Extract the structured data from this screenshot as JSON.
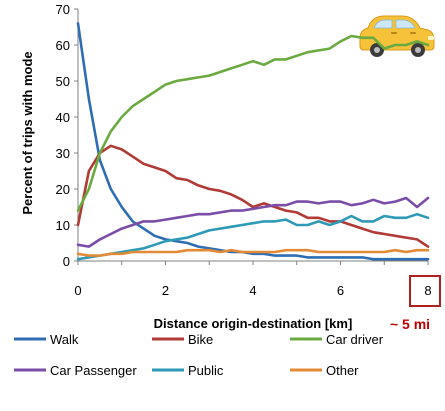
{
  "chart_data": {
    "type": "line",
    "xlabel": "Distance origin-destination [km]",
    "ylabel": "Percent of trips with mode",
    "xlim": [
      0,
      8
    ],
    "ylim": [
      0,
      70
    ],
    "x_ticks": [
      "0",
      "2",
      "4",
      "6",
      "8"
    ],
    "y_ticks": [
      "0",
      "10",
      "20",
      "30",
      "40",
      "50",
      "60",
      "70"
    ],
    "grid": false,
    "legend_position": "bottom",
    "highlighted_tick": "8",
    "annotation": "~ 5 mi",
    "x": [
      0,
      0.25,
      0.5,
      0.75,
      1,
      1.25,
      1.5,
      1.75,
      2,
      2.25,
      2.5,
      2.75,
      3,
      3.25,
      3.5,
      3.75,
      4,
      4.25,
      4.5,
      4.75,
      5,
      5.25,
      5.5,
      5.75,
      6,
      6.25,
      6.5,
      6.75,
      7,
      7.25,
      7.5,
      7.75,
      8
    ],
    "series": [
      {
        "name": "Walk",
        "color": "#2e6db4",
        "values": [
          66,
          45,
          28,
          20,
          15,
          11,
          9,
          7,
          6,
          5.5,
          5,
          4,
          3.5,
          3,
          2.5,
          2.5,
          2,
          2,
          1.5,
          1.5,
          1.5,
          1,
          1,
          1,
          1,
          1,
          1,
          0.5,
          0.5,
          0.5,
          0.5,
          0.5,
          0.5
        ]
      },
      {
        "name": "Bike",
        "color": "#b03a35",
        "values": [
          10,
          25,
          30,
          32,
          31,
          29,
          27,
          26,
          25,
          23,
          22.5,
          21,
          20,
          19.5,
          18.5,
          17,
          15,
          16,
          15,
          14,
          13.5,
          12,
          12,
          11,
          11,
          10,
          9,
          8,
          7.5,
          7,
          6.5,
          6,
          4
        ]
      },
      {
        "name": "Car driver",
        "color": "#6aaa40",
        "values": [
          14,
          20,
          30,
          36,
          40,
          43,
          45,
          47,
          49,
          50,
          50.5,
          51,
          51.5,
          52.5,
          53.5,
          54.5,
          55.5,
          54.5,
          56,
          56,
          57,
          58,
          58.5,
          59,
          61,
          62.5,
          62,
          62,
          59,
          60,
          60,
          61,
          60
        ]
      },
      {
        "name": "Car Passenger",
        "color": "#7a4ea8",
        "values": [
          4.5,
          4,
          6,
          7.5,
          9,
          10,
          11,
          11,
          11.5,
          12,
          12.5,
          13,
          13,
          13.5,
          14,
          14,
          14.5,
          15,
          15.5,
          15.5,
          16.5,
          16.5,
          16,
          16.5,
          16.5,
          15.5,
          16,
          17,
          16,
          16.5,
          17.5,
          15,
          17.5
        ]
      },
      {
        "name": "Public",
        "color": "#2e9ab5",
        "values": [
          0.5,
          1,
          1.5,
          2,
          2.5,
          3,
          3.5,
          4.5,
          5.5,
          6,
          6.5,
          7.5,
          8.5,
          9,
          9.5,
          10,
          10.5,
          11,
          11,
          11.5,
          10,
          10,
          11,
          10,
          11,
          12.5,
          11,
          11,
          12.5,
          12,
          12,
          13,
          12
        ]
      },
      {
        "name": "Other",
        "color": "#e38a36",
        "values": [
          2,
          1.5,
          1.5,
          2,
          2,
          2.5,
          2.5,
          2.5,
          2.5,
          2.5,
          3,
          3,
          3,
          2.5,
          3,
          2.5,
          2.5,
          2.5,
          2.5,
          3,
          3,
          3,
          2.5,
          2.5,
          2.5,
          2.5,
          2.5,
          2.5,
          2.5,
          3,
          2.5,
          3,
          3
        ]
      }
    ]
  },
  "icons": {
    "car": "car-icon"
  }
}
